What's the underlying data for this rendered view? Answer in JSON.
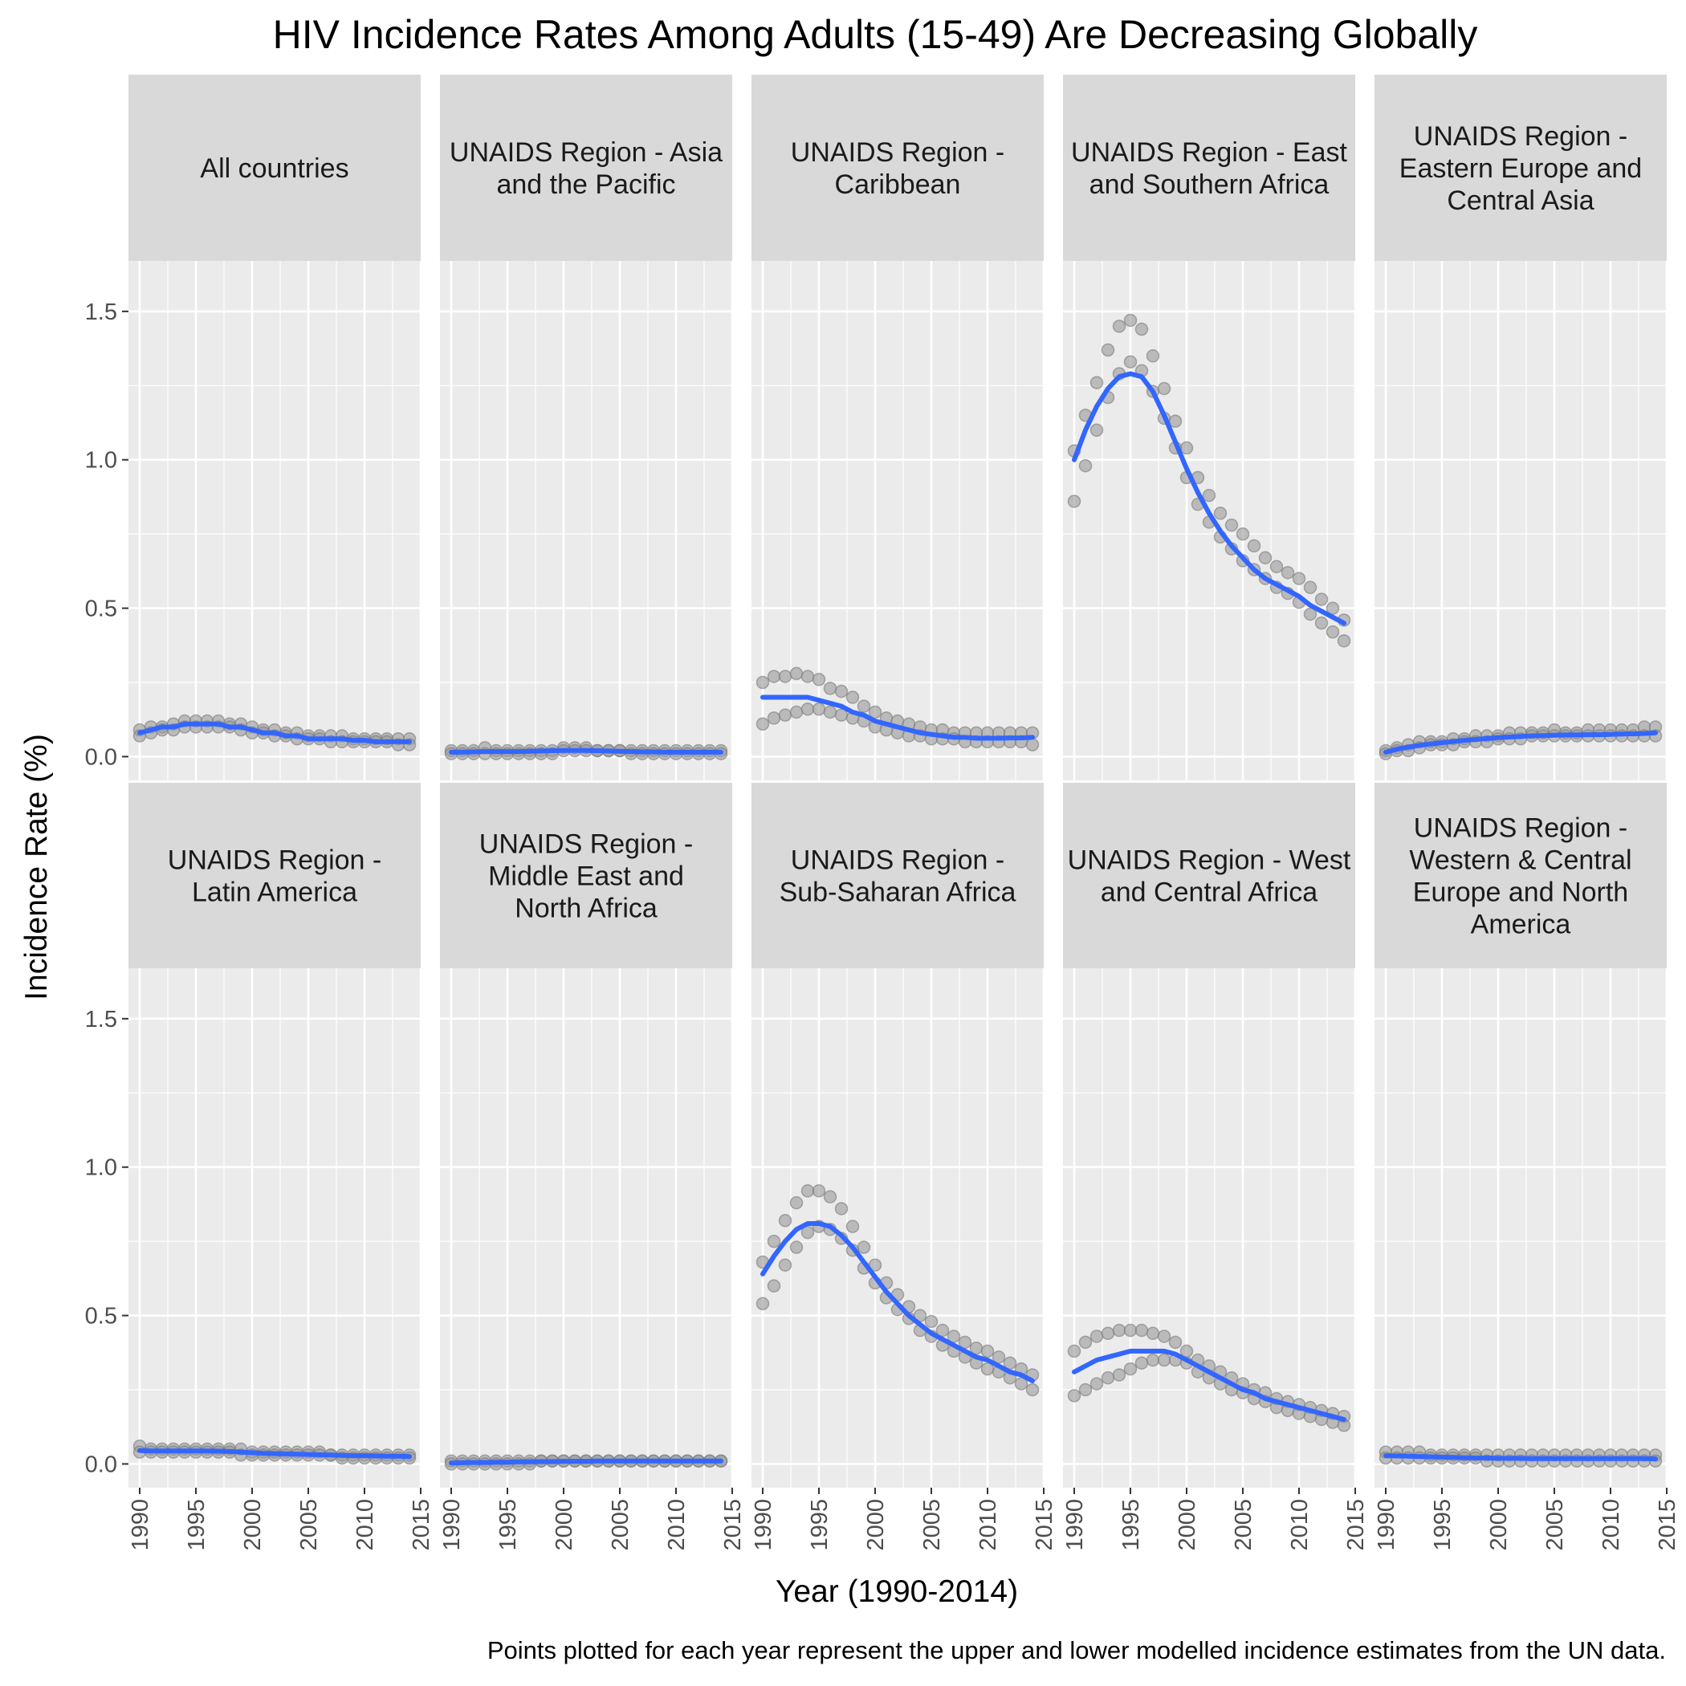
{
  "chart_data": {
    "type": "scatter",
    "title": "HIV Incidence Rates Among Adults (15-49) Are Decreasing Globally",
    "xlabel": "Year (1990-2014)",
    "ylabel": "Incidence Rate (%)",
    "caption": "Points plotted for each year represent the upper and lower modelled incidence estimates from the UN data.",
    "xlim": [
      1989,
      2015
    ],
    "ylim": [
      -0.08,
      1.67
    ],
    "x_ticks": [
      1990,
      1995,
      2000,
      2005,
      2010,
      2015
    ],
    "y_ticks": [
      0.0,
      0.5,
      1.0,
      1.5
    ],
    "y_tick_labels": [
      "0.0",
      "0.5",
      "1.0",
      "1.5"
    ],
    "point_color": "#999999",
    "line_color": "#3366FF",
    "panel_bg": "#EBEBEB",
    "strip_bg": "#D9D9D9",
    "years": [
      1990,
      1991,
      1992,
      1993,
      1994,
      1995,
      1996,
      1997,
      1998,
      1999,
      2000,
      2001,
      2002,
      2003,
      2004,
      2005,
      2006,
      2007,
      2008,
      2009,
      2010,
      2011,
      2012,
      2013,
      2014
    ],
    "panels": [
      {
        "title": "All countries",
        "upper": [
          0.09,
          0.1,
          0.1,
          0.11,
          0.12,
          0.12,
          0.12,
          0.12,
          0.11,
          0.11,
          0.1,
          0.09,
          0.09,
          0.08,
          0.08,
          0.07,
          0.07,
          0.07,
          0.07,
          0.06,
          0.06,
          0.06,
          0.06,
          0.06,
          0.06
        ],
        "lower": [
          0.07,
          0.08,
          0.09,
          0.09,
          0.1,
          0.1,
          0.1,
          0.1,
          0.1,
          0.09,
          0.08,
          0.08,
          0.07,
          0.07,
          0.06,
          0.06,
          0.06,
          0.05,
          0.05,
          0.05,
          0.05,
          0.05,
          0.05,
          0.04,
          0.04
        ],
        "trend": [
          0.08,
          0.09,
          0.1,
          0.1,
          0.11,
          0.11,
          0.11,
          0.11,
          0.1,
          0.1,
          0.09,
          0.08,
          0.08,
          0.07,
          0.07,
          0.06,
          0.06,
          0.06,
          0.06,
          0.055,
          0.055,
          0.05,
          0.05,
          0.05,
          0.05
        ]
      },
      {
        "title": "UNAIDS Region - Asia and the Pacific",
        "upper": [
          0.02,
          0.02,
          0.02,
          0.03,
          0.02,
          0.02,
          0.02,
          0.02,
          0.02,
          0.02,
          0.03,
          0.03,
          0.03,
          0.02,
          0.02,
          0.02,
          0.02,
          0.02,
          0.02,
          0.02,
          0.02,
          0.02,
          0.02,
          0.02,
          0.02
        ],
        "lower": [
          0.01,
          0.01,
          0.01,
          0.01,
          0.01,
          0.01,
          0.01,
          0.01,
          0.01,
          0.01,
          0.02,
          0.02,
          0.02,
          0.02,
          0.02,
          0.02,
          0.01,
          0.01,
          0.01,
          0.01,
          0.01,
          0.01,
          0.01,
          0.01,
          0.01
        ],
        "trend": [
          0.015,
          0.015,
          0.016,
          0.017,
          0.017,
          0.017,
          0.017,
          0.018,
          0.019,
          0.02,
          0.021,
          0.021,
          0.021,
          0.02,
          0.019,
          0.018,
          0.017,
          0.016,
          0.016,
          0.015,
          0.015,
          0.015,
          0.015,
          0.015,
          0.015
        ]
      },
      {
        "title": "UNAIDS Region - Caribbean",
        "upper": [
          0.25,
          0.27,
          0.27,
          0.28,
          0.27,
          0.26,
          0.23,
          0.22,
          0.2,
          0.17,
          0.15,
          0.13,
          0.12,
          0.11,
          0.1,
          0.09,
          0.09,
          0.08,
          0.08,
          0.08,
          0.08,
          0.08,
          0.08,
          0.08,
          0.08
        ],
        "lower": [
          0.11,
          0.13,
          0.14,
          0.15,
          0.16,
          0.16,
          0.15,
          0.14,
          0.13,
          0.12,
          0.1,
          0.09,
          0.08,
          0.07,
          0.07,
          0.06,
          0.06,
          0.06,
          0.05,
          0.05,
          0.05,
          0.05,
          0.05,
          0.05,
          0.04
        ],
        "trend": [
          0.2,
          0.2,
          0.2,
          0.2,
          0.2,
          0.19,
          0.18,
          0.17,
          0.15,
          0.14,
          0.12,
          0.11,
          0.1,
          0.09,
          0.08,
          0.075,
          0.07,
          0.065,
          0.065,
          0.062,
          0.062,
          0.062,
          0.063,
          0.063,
          0.065
        ]
      },
      {
        "title": "UNAIDS Region - East and Southern Africa",
        "upper": [
          1.03,
          1.15,
          1.26,
          1.37,
          1.45,
          1.47,
          1.44,
          1.35,
          1.24,
          1.13,
          1.04,
          0.94,
          0.88,
          0.82,
          0.78,
          0.75,
          0.71,
          0.67,
          0.64,
          0.62,
          0.6,
          0.57,
          0.53,
          0.5,
          0.46
        ],
        "lower": [
          0.86,
          0.98,
          1.1,
          1.21,
          1.29,
          1.33,
          1.3,
          1.23,
          1.14,
          1.04,
          0.94,
          0.85,
          0.79,
          0.74,
          0.7,
          0.66,
          0.63,
          0.6,
          0.57,
          0.55,
          0.52,
          0.48,
          0.45,
          0.42,
          0.39
        ],
        "trend": [
          1.0,
          1.1,
          1.18,
          1.24,
          1.28,
          1.29,
          1.28,
          1.23,
          1.15,
          1.06,
          0.97,
          0.89,
          0.82,
          0.76,
          0.71,
          0.67,
          0.63,
          0.6,
          0.58,
          0.56,
          0.54,
          0.51,
          0.49,
          0.47,
          0.45
        ]
      },
      {
        "title": "UNAIDS Region - Eastern Europe and Central Asia",
        "upper": [
          0.02,
          0.03,
          0.04,
          0.05,
          0.05,
          0.05,
          0.06,
          0.06,
          0.07,
          0.07,
          0.07,
          0.08,
          0.08,
          0.08,
          0.08,
          0.09,
          0.08,
          0.08,
          0.09,
          0.09,
          0.09,
          0.09,
          0.09,
          0.1,
          0.1
        ],
        "lower": [
          0.01,
          0.02,
          0.02,
          0.03,
          0.04,
          0.04,
          0.04,
          0.05,
          0.05,
          0.05,
          0.06,
          0.06,
          0.06,
          0.07,
          0.07,
          0.07,
          0.07,
          0.07,
          0.07,
          0.07,
          0.07,
          0.07,
          0.07,
          0.07,
          0.07
        ],
        "trend": [
          0.015,
          0.025,
          0.032,
          0.038,
          0.043,
          0.047,
          0.051,
          0.055,
          0.058,
          0.061,
          0.064,
          0.066,
          0.068,
          0.07,
          0.071,
          0.072,
          0.073,
          0.073,
          0.074,
          0.074,
          0.075,
          0.076,
          0.077,
          0.078,
          0.08
        ]
      },
      {
        "title": "UNAIDS Region - Latin America",
        "upper": [
          0.06,
          0.05,
          0.05,
          0.05,
          0.05,
          0.05,
          0.05,
          0.05,
          0.05,
          0.05,
          0.04,
          0.04,
          0.04,
          0.04,
          0.04,
          0.04,
          0.04,
          0.03,
          0.03,
          0.03,
          0.03,
          0.03,
          0.03,
          0.03,
          0.03
        ],
        "lower": [
          0.04,
          0.04,
          0.04,
          0.04,
          0.04,
          0.04,
          0.04,
          0.04,
          0.04,
          0.03,
          0.03,
          0.03,
          0.03,
          0.03,
          0.03,
          0.03,
          0.03,
          0.03,
          0.02,
          0.02,
          0.02,
          0.02,
          0.02,
          0.02,
          0.02
        ],
        "trend": [
          0.045,
          0.044,
          0.044,
          0.044,
          0.044,
          0.044,
          0.044,
          0.043,
          0.042,
          0.04,
          0.038,
          0.036,
          0.035,
          0.034,
          0.033,
          0.032,
          0.031,
          0.03,
          0.029,
          0.028,
          0.028,
          0.027,
          0.026,
          0.026,
          0.025
        ]
      },
      {
        "title": "UNAIDS Region - Middle East and North Africa",
        "upper": [
          0.01,
          0.01,
          0.01,
          0.01,
          0.01,
          0.01,
          0.01,
          0.01,
          0.01,
          0.01,
          0.01,
          0.01,
          0.01,
          0.01,
          0.01,
          0.01,
          0.01,
          0.01,
          0.01,
          0.01,
          0.01,
          0.01,
          0.01,
          0.01,
          0.01
        ],
        "lower": [
          0.0,
          0.0,
          0.0,
          0.0,
          0.0,
          0.0,
          0.0,
          0.0,
          0.01,
          0.01,
          0.01,
          0.01,
          0.01,
          0.01,
          0.01,
          0.01,
          0.01,
          0.01,
          0.01,
          0.01,
          0.01,
          0.01,
          0.01,
          0.01,
          0.01
        ],
        "trend": [
          0.003,
          0.004,
          0.005,
          0.005,
          0.006,
          0.006,
          0.007,
          0.007,
          0.008,
          0.008,
          0.009,
          0.009,
          0.009,
          0.01,
          0.01,
          0.01,
          0.01,
          0.01,
          0.01,
          0.01,
          0.01,
          0.01,
          0.01,
          0.01,
          0.01
        ]
      },
      {
        "title": "UNAIDS Region - Sub-Saharan Africa",
        "upper": [
          0.68,
          0.75,
          0.82,
          0.88,
          0.92,
          0.92,
          0.9,
          0.86,
          0.8,
          0.73,
          0.67,
          0.61,
          0.57,
          0.53,
          0.5,
          0.48,
          0.45,
          0.43,
          0.41,
          0.39,
          0.38,
          0.36,
          0.34,
          0.32,
          0.3
        ],
        "lower": [
          0.54,
          0.6,
          0.67,
          0.73,
          0.78,
          0.8,
          0.79,
          0.76,
          0.72,
          0.66,
          0.61,
          0.56,
          0.52,
          0.49,
          0.45,
          0.43,
          0.4,
          0.38,
          0.36,
          0.34,
          0.32,
          0.31,
          0.29,
          0.27,
          0.25
        ],
        "trend": [
          0.64,
          0.7,
          0.75,
          0.79,
          0.81,
          0.81,
          0.8,
          0.77,
          0.73,
          0.68,
          0.63,
          0.58,
          0.54,
          0.5,
          0.47,
          0.44,
          0.42,
          0.4,
          0.38,
          0.36,
          0.35,
          0.33,
          0.31,
          0.3,
          0.28
        ]
      },
      {
        "title": "UNAIDS Region - West and Central Africa",
        "upper": [
          0.38,
          0.41,
          0.43,
          0.44,
          0.45,
          0.45,
          0.45,
          0.44,
          0.43,
          0.41,
          0.38,
          0.35,
          0.33,
          0.31,
          0.29,
          0.27,
          0.25,
          0.24,
          0.22,
          0.21,
          0.2,
          0.19,
          0.18,
          0.17,
          0.16
        ],
        "lower": [
          0.23,
          0.25,
          0.27,
          0.29,
          0.3,
          0.32,
          0.34,
          0.35,
          0.35,
          0.35,
          0.34,
          0.31,
          0.29,
          0.27,
          0.25,
          0.24,
          0.22,
          0.21,
          0.19,
          0.18,
          0.17,
          0.16,
          0.15,
          0.14,
          0.13
        ],
        "trend": [
          0.31,
          0.33,
          0.35,
          0.36,
          0.37,
          0.38,
          0.38,
          0.38,
          0.38,
          0.37,
          0.35,
          0.33,
          0.31,
          0.29,
          0.27,
          0.25,
          0.24,
          0.22,
          0.21,
          0.2,
          0.19,
          0.18,
          0.17,
          0.16,
          0.15
        ]
      },
      {
        "title": "UNAIDS Region - Western & Central Europe and North America",
        "upper": [
          0.04,
          0.04,
          0.04,
          0.04,
          0.03,
          0.03,
          0.03,
          0.03,
          0.03,
          0.03,
          0.03,
          0.03,
          0.03,
          0.03,
          0.03,
          0.03,
          0.03,
          0.03,
          0.03,
          0.03,
          0.03,
          0.03,
          0.03,
          0.03,
          0.03
        ],
        "lower": [
          0.02,
          0.02,
          0.02,
          0.02,
          0.02,
          0.02,
          0.02,
          0.02,
          0.02,
          0.01,
          0.01,
          0.01,
          0.01,
          0.01,
          0.01,
          0.01,
          0.01,
          0.01,
          0.01,
          0.01,
          0.01,
          0.01,
          0.01,
          0.01,
          0.01
        ],
        "trend": [
          0.028,
          0.027,
          0.026,
          0.025,
          0.024,
          0.023,
          0.022,
          0.021,
          0.02,
          0.02,
          0.019,
          0.019,
          0.019,
          0.018,
          0.018,
          0.018,
          0.018,
          0.018,
          0.018,
          0.018,
          0.018,
          0.018,
          0.018,
          0.018,
          0.017
        ]
      }
    ]
  }
}
